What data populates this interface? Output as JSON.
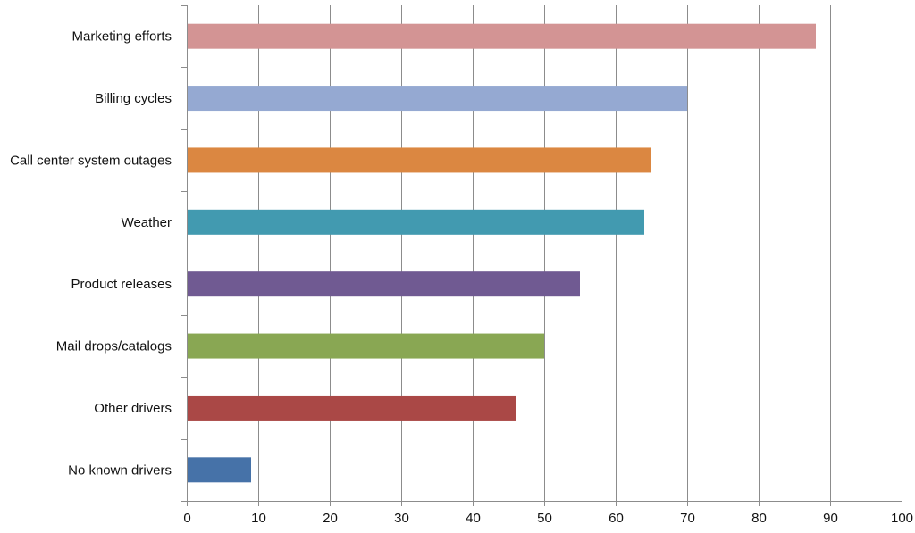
{
  "chart_data": {
    "type": "bar",
    "orientation": "horizontal",
    "title": "",
    "xlabel": "",
    "ylabel": "",
    "xlim": [
      0,
      100
    ],
    "x_ticks": [
      0,
      10,
      20,
      30,
      40,
      50,
      60,
      70,
      80,
      90,
      100
    ],
    "grid": "vertical",
    "legend": "none",
    "categories": [
      "Marketing efforts",
      "Billing cycles",
      "Call center system outages",
      "Weather",
      "Product releases",
      "Mail drops/catalogs",
      "Other drivers",
      "No known drivers"
    ],
    "values": [
      88,
      70,
      65,
      64,
      55,
      50,
      46,
      9
    ],
    "colors": [
      "#d39494",
      "#95a9d2",
      "#db8741",
      "#429ab0",
      "#705a92",
      "#89a753",
      "#aa4846",
      "#4672a8"
    ]
  }
}
